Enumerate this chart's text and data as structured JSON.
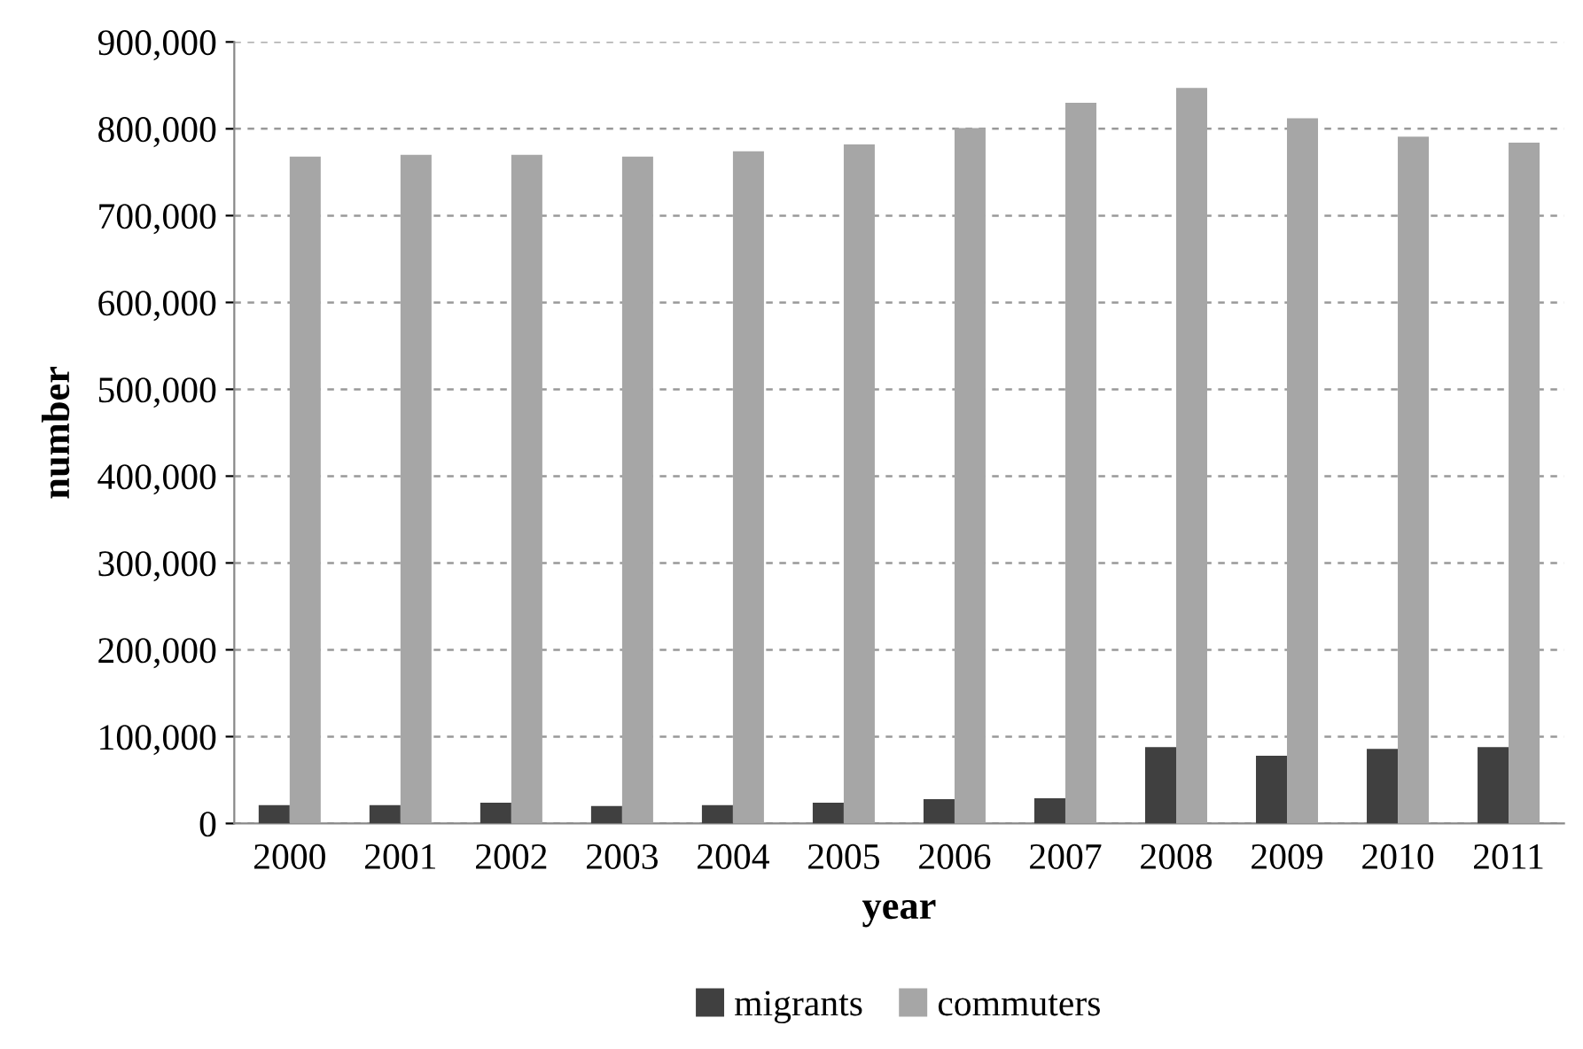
{
  "chart_data": {
    "type": "bar",
    "xlabel": "year",
    "ylabel": "number",
    "categories": [
      "2000",
      "2001",
      "2002",
      "2003",
      "2004",
      "2005",
      "2006",
      "2007",
      "2008",
      "2009",
      "2010",
      "2011"
    ],
    "series": [
      {
        "name": "migrants",
        "color": "#404040",
        "values": [
          21000,
          21000,
          24000,
          20000,
          21000,
          24000,
          28000,
          29000,
          88000,
          78000,
          86000,
          88000
        ]
      },
      {
        "name": "commuters",
        "color": "#a6a6a6",
        "values": [
          768000,
          770000,
          770000,
          768000,
          774000,
          782000,
          801000,
          830000,
          847000,
          812000,
          791000,
          784000
        ]
      }
    ],
    "ylim": [
      0,
      900000
    ],
    "yticks": [
      {
        "value": 0,
        "label": "0"
      },
      {
        "value": 100000,
        "label": "100,000"
      },
      {
        "value": 200000,
        "label": "200,000"
      },
      {
        "value": 300000,
        "label": "300,000"
      },
      {
        "value": 400000,
        "label": "400,000"
      },
      {
        "value": 500000,
        "label": "500,000"
      },
      {
        "value": 600000,
        "label": "600,000"
      },
      {
        "value": 700000,
        "label": "700,000"
      },
      {
        "value": 800000,
        "label": "800,000"
      },
      {
        "value": 900000,
        "label": "900,000"
      }
    ],
    "grid": "y",
    "legend": "bottom"
  }
}
